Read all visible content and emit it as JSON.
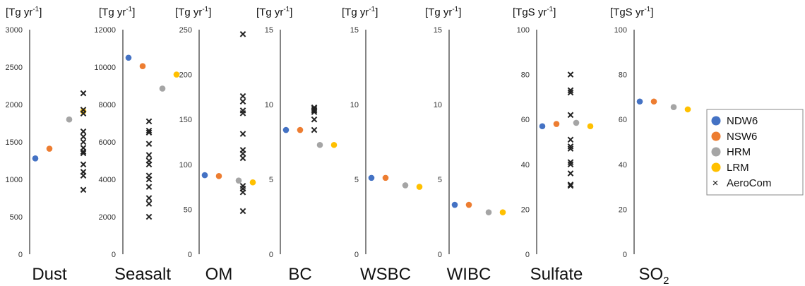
{
  "chart_data": {
    "type": "scatter",
    "series": [
      {
        "name": "NDW6",
        "color": "#4472C4",
        "marker": "circle"
      },
      {
        "name": "NSW6",
        "color": "#ED7D31",
        "marker": "circle"
      },
      {
        "name": "HRM",
        "color": "#A5A5A5",
        "marker": "circle"
      },
      {
        "name": "LRM",
        "color": "#FFC000",
        "marker": "circle"
      },
      {
        "name": "AeroCom",
        "color": "#222222",
        "marker": "x"
      }
    ],
    "legend": {
      "placement": "right"
    },
    "panels": [
      {
        "title": "Dust",
        "title_sub": "",
        "unit": "[Tg yr",
        "unit_sup": "-1",
        "unit_end": "]",
        "ylim": [
          0,
          3000
        ],
        "ticks": [
          "0",
          "500",
          "1000",
          "1500",
          "2000",
          "2500",
          "3000"
        ],
        "tick_values": [
          0,
          500,
          1000,
          1500,
          2000,
          2500,
          3000
        ],
        "values": [
          1280,
          1410,
          1800,
          1910
        ],
        "aerocom": [
          2150,
          1930,
          1880,
          1640,
          1570,
          1500,
          1420,
          1370,
          1350,
          1200,
          1100,
          1050,
          860
        ]
      },
      {
        "title": "Seasalt",
        "title_sub": "",
        "unit": "[Tg yr",
        "unit_sup": "-1",
        "unit_end": "]",
        "ylim": [
          0,
          12000
        ],
        "ticks": [
          "0",
          "2000",
          "4000",
          "6000",
          "8000",
          "10000",
          "12000"
        ],
        "tick_values": [
          0,
          2000,
          4000,
          6000,
          8000,
          10000,
          12000
        ],
        "values": [
          10500,
          10050,
          8850,
          9600
        ],
        "aerocom": [
          7100,
          6600,
          6500,
          5900,
          5300,
          5000,
          4800,
          4200,
          4000,
          3600,
          3000,
          2700,
          2000
        ]
      },
      {
        "title": "OM",
        "title_sub": "",
        "unit": "[Tg yr",
        "unit_sup": "-1",
        "unit_end": "]",
        "ylim": [
          0,
          250
        ],
        "ticks": [
          "0",
          "50",
          "100",
          "150",
          "200",
          "250"
        ],
        "tick_values": [
          0,
          50,
          100,
          150,
          200,
          250
        ],
        "values": [
          88,
          87,
          82,
          80
        ],
        "aerocom": [
          245,
          176,
          170,
          160,
          157,
          134,
          116,
          112,
          107,
          76,
          73,
          69,
          48
        ]
      },
      {
        "title": "BC",
        "title_sub": "",
        "unit": "[Tg yr",
        "unit_sup": "-1",
        "unit_end": "]",
        "ylim": [
          0,
          15
        ],
        "ticks": [
          "0",
          "5",
          "10",
          "15"
        ],
        "tick_values": [
          0,
          5,
          10,
          15
        ],
        "values": [
          8.3,
          8.3,
          7.3,
          7.3
        ],
        "aerocom": [
          9.8,
          9.7,
          9.6,
          9.5,
          9.0,
          8.3
        ]
      },
      {
        "title": "WSBC",
        "title_sub": "",
        "unit": "[Tg yr",
        "unit_sup": "-1",
        "unit_end": "]",
        "ylim": [
          0,
          15
        ],
        "ticks": [
          "0",
          "5",
          "10",
          "15"
        ],
        "tick_values": [
          0,
          5,
          10,
          15
        ],
        "values": [
          5.1,
          5.1,
          4.6,
          4.5
        ],
        "aerocom": []
      },
      {
        "title": "WIBC",
        "title_sub": "",
        "unit": "[Tg yr",
        "unit_sup": "-1",
        "unit_end": "]",
        "ylim": [
          0,
          15
        ],
        "ticks": [
          "0",
          "5",
          "10",
          "15"
        ],
        "tick_values": [
          0,
          5,
          10,
          15
        ],
        "values": [
          3.3,
          3.3,
          2.8,
          2.8
        ],
        "aerocom": []
      },
      {
        "title": "Sulfate",
        "title_sub": "",
        "unit": "[TgS yr",
        "unit_sup": "-1",
        "unit_end": "]",
        "ylim": [
          0,
          100
        ],
        "ticks": [
          "0",
          "20",
          "40",
          "60",
          "80",
          "100"
        ],
        "tick_values": [
          0,
          20,
          40,
          60,
          80,
          100
        ],
        "values": [
          57,
          58,
          58.5,
          57
        ],
        "aerocom": [
          80,
          73,
          72,
          62,
          51,
          48,
          47,
          41,
          40,
          36,
          31,
          30.5
        ]
      },
      {
        "title": "SO",
        "title_sub": "2",
        "unit": "[TgS yr",
        "unit_sup": "-1",
        "unit_end": "]",
        "ylim": [
          0,
          100
        ],
        "ticks": [
          "0",
          "20",
          "40",
          "60",
          "80",
          "100"
        ],
        "tick_values": [
          0,
          20,
          40,
          60,
          80,
          100
        ],
        "values": [
          68,
          68,
          65.5,
          64.5
        ],
        "aerocom": []
      }
    ]
  }
}
